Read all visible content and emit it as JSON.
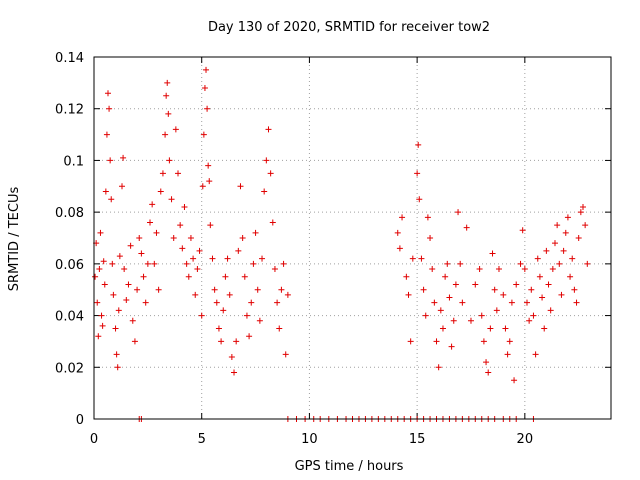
{
  "chart_data": {
    "type": "scatter",
    "title": "Day 130 of 2020, SRMTID for receiver tow2",
    "xlabel": "GPS time / hours",
    "ylabel": "SRMTID / TECUs",
    "xlim": [
      0,
      24
    ],
    "ylim": [
      0,
      0.14
    ],
    "xticks": [
      0,
      5,
      10,
      15,
      20
    ],
    "xtick_labels": [
      "0",
      "5",
      "10",
      "15",
      "20"
    ],
    "yticks": [
      0,
      0.02,
      0.04,
      0.06,
      0.08,
      0.1,
      0.12,
      0.14
    ],
    "ytick_labels": [
      "0",
      "0.02",
      "0.04",
      "0.06",
      "0.08",
      "0.1",
      "0.12",
      "0.14"
    ],
    "grid": true,
    "marker": "+",
    "color": "#e00000",
    "series": [
      {
        "name": "SRMTID",
        "points": [
          [
            0.05,
            0.055
          ],
          [
            0.1,
            0.068
          ],
          [
            0.15,
            0.045
          ],
          [
            0.2,
            0.032
          ],
          [
            0.25,
            0.058
          ],
          [
            0.3,
            0.072
          ],
          [
            0.35,
            0.04
          ],
          [
            0.4,
            0.036
          ],
          [
            0.45,
            0.061
          ],
          [
            0.5,
            0.052
          ],
          [
            0.55,
            0.088
          ],
          [
            0.6,
            0.11
          ],
          [
            0.65,
            0.126
          ],
          [
            0.7,
            0.12
          ],
          [
            0.75,
            0.1
          ],
          [
            0.8,
            0.085
          ],
          [
            0.85,
            0.06
          ],
          [
            0.9,
            0.048
          ],
          [
            1.0,
            0.035
          ],
          [
            1.05,
            0.025
          ],
          [
            1.1,
            0.02
          ],
          [
            1.15,
            0.042
          ],
          [
            1.2,
            0.063
          ],
          [
            1.3,
            0.09
          ],
          [
            1.35,
            0.101
          ],
          [
            1.4,
            0.058
          ],
          [
            1.5,
            0.046
          ],
          [
            1.6,
            0.052
          ],
          [
            1.7,
            0.067
          ],
          [
            1.8,
            0.038
          ],
          [
            1.9,
            0.03
          ],
          [
            2.0,
            0.05
          ],
          [
            2.1,
            0.07
          ],
          [
            2.2,
            0.064
          ],
          [
            2.3,
            0.055
          ],
          [
            2.4,
            0.045
          ],
          [
            2.5,
            0.06
          ],
          [
            2.6,
            0.076
          ],
          [
            2.7,
            0.083
          ],
          [
            2.8,
            0.06
          ],
          [
            2.9,
            0.072
          ],
          [
            3.0,
            0.05
          ],
          [
            3.1,
            0.088
          ],
          [
            3.2,
            0.095
          ],
          [
            3.3,
            0.11
          ],
          [
            3.35,
            0.125
          ],
          [
            3.4,
            0.13
          ],
          [
            3.45,
            0.118
          ],
          [
            3.5,
            0.1
          ],
          [
            3.6,
            0.085
          ],
          [
            3.7,
            0.07
          ],
          [
            3.8,
            0.112
          ],
          [
            3.9,
            0.095
          ],
          [
            4.0,
            0.075
          ],
          [
            4.1,
            0.066
          ],
          [
            4.2,
            0.082
          ],
          [
            4.3,
            0.06
          ],
          [
            4.4,
            0.055
          ],
          [
            4.5,
            0.07
          ],
          [
            4.6,
            0.062
          ],
          [
            4.7,
            0.048
          ],
          [
            4.8,
            0.058
          ],
          [
            4.9,
            0.065
          ],
          [
            5.0,
            0.04
          ],
          [
            5.05,
            0.09
          ],
          [
            5.1,
            0.11
          ],
          [
            5.15,
            0.128
          ],
          [
            5.2,
            0.135
          ],
          [
            5.25,
            0.12
          ],
          [
            5.3,
            0.098
          ],
          [
            5.35,
            0.092
          ],
          [
            5.4,
            0.075
          ],
          [
            5.5,
            0.062
          ],
          [
            5.6,
            0.05
          ],
          [
            5.7,
            0.045
          ],
          [
            5.8,
            0.035
          ],
          [
            5.9,
            0.03
          ],
          [
            6.0,
            0.042
          ],
          [
            6.1,
            0.055
          ],
          [
            6.2,
            0.062
          ],
          [
            6.3,
            0.048
          ],
          [
            6.4,
            0.024
          ],
          [
            6.5,
            0.018
          ],
          [
            6.6,
            0.03
          ],
          [
            6.7,
            0.065
          ],
          [
            6.8,
            0.09
          ],
          [
            6.9,
            0.07
          ],
          [
            7.0,
            0.055
          ],
          [
            7.1,
            0.04
          ],
          [
            7.2,
            0.032
          ],
          [
            7.3,
            0.045
          ],
          [
            7.4,
            0.06
          ],
          [
            7.5,
            0.072
          ],
          [
            7.6,
            0.05
          ],
          [
            7.7,
            0.038
          ],
          [
            7.8,
            0.062
          ],
          [
            7.9,
            0.088
          ],
          [
            8.0,
            0.1
          ],
          [
            8.1,
            0.112
          ],
          [
            8.2,
            0.095
          ],
          [
            8.3,
            0.076
          ],
          [
            8.4,
            0.058
          ],
          [
            8.5,
            0.045
          ],
          [
            8.6,
            0.035
          ],
          [
            8.7,
            0.05
          ],
          [
            8.8,
            0.06
          ],
          [
            8.9,
            0.025
          ],
          [
            9.0,
            0.048
          ],
          [
            14.1,
            0.072
          ],
          [
            14.2,
            0.066
          ],
          [
            14.3,
            0.078
          ],
          [
            14.5,
            0.055
          ],
          [
            14.6,
            0.048
          ],
          [
            14.7,
            0.03
          ],
          [
            14.8,
            0.062
          ],
          [
            15.0,
            0.095
          ],
          [
            15.05,
            0.106
          ],
          [
            15.1,
            0.085
          ],
          [
            15.2,
            0.062
          ],
          [
            15.3,
            0.05
          ],
          [
            15.4,
            0.04
          ],
          [
            15.5,
            0.078
          ],
          [
            15.6,
            0.07
          ],
          [
            15.7,
            0.058
          ],
          [
            15.8,
            0.045
          ],
          [
            15.9,
            0.03
          ],
          [
            16.0,
            0.02
          ],
          [
            16.1,
            0.042
          ],
          [
            16.2,
            0.035
          ],
          [
            16.3,
            0.055
          ],
          [
            16.4,
            0.06
          ],
          [
            16.5,
            0.047
          ],
          [
            16.6,
            0.028
          ],
          [
            16.7,
            0.038
          ],
          [
            16.8,
            0.052
          ],
          [
            16.9,
            0.08
          ],
          [
            17.0,
            0.06
          ],
          [
            17.1,
            0.045
          ],
          [
            17.3,
            0.074
          ],
          [
            17.5,
            0.038
          ],
          [
            17.7,
            0.052
          ],
          [
            17.9,
            0.058
          ],
          [
            18.0,
            0.04
          ],
          [
            18.1,
            0.03
          ],
          [
            18.2,
            0.022
          ],
          [
            18.3,
            0.018
          ],
          [
            18.4,
            0.035
          ],
          [
            18.5,
            0.064
          ],
          [
            18.6,
            0.05
          ],
          [
            18.7,
            0.042
          ],
          [
            18.8,
            0.058
          ],
          [
            19.0,
            0.048
          ],
          [
            19.1,
            0.035
          ],
          [
            19.2,
            0.025
          ],
          [
            19.3,
            0.03
          ],
          [
            19.4,
            0.045
          ],
          [
            19.5,
            0.015
          ],
          [
            19.6,
            0.052
          ],
          [
            19.8,
            0.06
          ],
          [
            19.9,
            0.073
          ],
          [
            20.0,
            0.058
          ],
          [
            20.1,
            0.045
          ],
          [
            20.2,
            0.038
          ],
          [
            20.3,
            0.05
          ],
          [
            20.4,
            0.04
          ],
          [
            20.5,
            0.025
          ],
          [
            20.6,
            0.062
          ],
          [
            20.7,
            0.055
          ],
          [
            20.8,
            0.047
          ],
          [
            20.9,
            0.035
          ],
          [
            21.0,
            0.065
          ],
          [
            21.1,
            0.052
          ],
          [
            21.2,
            0.042
          ],
          [
            21.3,
            0.058
          ],
          [
            21.4,
            0.068
          ],
          [
            21.5,
            0.075
          ],
          [
            21.6,
            0.06
          ],
          [
            21.7,
            0.048
          ],
          [
            21.8,
            0.065
          ],
          [
            21.9,
            0.072
          ],
          [
            22.0,
            0.078
          ],
          [
            22.1,
            0.055
          ],
          [
            22.2,
            0.062
          ],
          [
            22.3,
            0.05
          ],
          [
            22.4,
            0.045
          ],
          [
            22.5,
            0.07
          ],
          [
            22.6,
            0.08
          ],
          [
            22.7,
            0.082
          ],
          [
            22.8,
            0.075
          ],
          [
            22.9,
            0.06
          ],
          [
            2.1,
            0.0
          ],
          [
            2.2,
            0.0
          ],
          [
            9.0,
            0.0
          ],
          [
            9.4,
            0.0
          ],
          [
            9.8,
            0.0
          ],
          [
            10.2,
            0.0
          ],
          [
            10.5,
            0.0
          ],
          [
            10.9,
            0.0
          ],
          [
            11.3,
            0.0
          ],
          [
            11.7,
            0.0
          ],
          [
            12.0,
            0.0
          ],
          [
            12.3,
            0.0
          ],
          [
            12.6,
            0.0
          ],
          [
            12.9,
            0.0
          ],
          [
            13.2,
            0.0
          ],
          [
            13.5,
            0.0
          ],
          [
            13.8,
            0.0
          ],
          [
            14.1,
            0.0
          ],
          [
            14.4,
            0.0
          ],
          [
            14.7,
            0.0
          ],
          [
            15.0,
            0.0
          ],
          [
            15.3,
            0.0
          ],
          [
            15.6,
            0.0
          ],
          [
            15.9,
            0.0
          ],
          [
            16.2,
            0.0
          ],
          [
            16.5,
            0.0
          ],
          [
            16.8,
            0.0
          ],
          [
            17.1,
            0.0
          ],
          [
            17.4,
            0.0
          ],
          [
            17.7,
            0.0
          ],
          [
            18.0,
            0.0
          ],
          [
            18.3,
            0.0
          ],
          [
            18.6,
            0.0
          ],
          [
            19.0,
            0.0
          ],
          [
            19.3,
            0.0
          ],
          [
            19.6,
            0.0
          ],
          [
            20.4,
            0.0
          ]
        ]
      }
    ]
  }
}
